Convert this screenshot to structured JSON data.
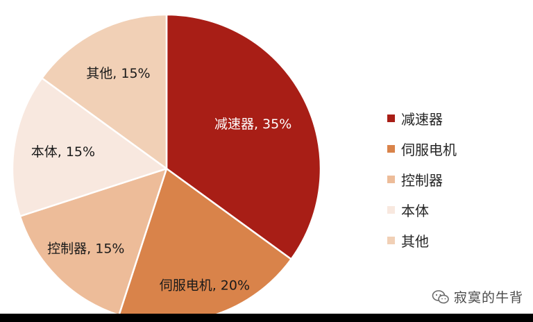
{
  "chart_data": {
    "type": "pie",
    "title": "",
    "slices": [
      {
        "name": "减速器",
        "label": "减速器, 35%",
        "value": 35,
        "color": "#a81e16",
        "label_on_dark": true
      },
      {
        "name": "伺服电机",
        "label": "伺服电机, 20%",
        "value": 20,
        "color": "#d9834a",
        "label_on_dark": false
      },
      {
        "name": "控制器",
        "label": "控制器, 15%",
        "value": 15,
        "color": "#edbc99",
        "label_on_dark": false
      },
      {
        "name": "本体",
        "label": "本体, 15%",
        "value": 15,
        "color": "#f8e8df",
        "label_on_dark": false
      },
      {
        "name": "其他",
        "label": "其他, 15%",
        "value": 15,
        "color": "#f1d0b6",
        "label_on_dark": false
      }
    ],
    "legend_position": "right",
    "start_angle": "12 o'clock",
    "direction": "clockwise",
    "slice_border_color": "#ffffff"
  },
  "watermark": {
    "text": "寂寞的牛背",
    "icon": "wechat-chat-icon"
  }
}
